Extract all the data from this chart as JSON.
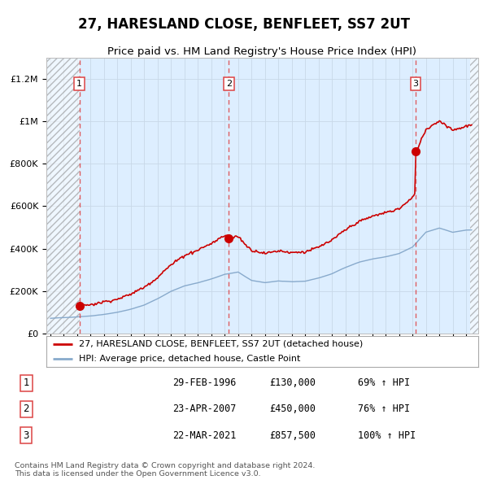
{
  "title": "27, HARESLAND CLOSE, BENFLEET, SS7 2UT",
  "subtitle": "Price paid vs. HM Land Registry's House Price Index (HPI)",
  "ylim": [
    0,
    1300000
  ],
  "yticks": [
    0,
    200000,
    400000,
    600000,
    800000,
    1000000,
    1200000
  ],
  "ytick_labels": [
    "£0",
    "£200K",
    "£400K",
    "£600K",
    "£800K",
    "£1M",
    "£1.2M"
  ],
  "xlim_start": 1993.7,
  "xlim_end": 2025.9,
  "background_color": "#ffffff",
  "plot_bg_color": "#ddeeff",
  "grid_color": "#c8d8e8",
  "sale_dates": [
    1996.16,
    2007.31,
    2021.22
  ],
  "sale_prices": [
    130000,
    450000,
    857500
  ],
  "sale_labels": [
    "1",
    "2",
    "3"
  ],
  "red_line_color": "#cc0000",
  "blue_line_color": "#88aacc",
  "dashed_line_color": "#dd4444",
  "legend_label_red": "27, HARESLAND CLOSE, BENFLEET, SS7 2UT (detached house)",
  "legend_label_blue": "HPI: Average price, detached house, Castle Point",
  "table_data": [
    [
      "1",
      "29-FEB-1996",
      "£130,000",
      "69% ↑ HPI"
    ],
    [
      "2",
      "23-APR-2007",
      "£450,000",
      "76% ↑ HPI"
    ],
    [
      "3",
      "22-MAR-2021",
      "£857,500",
      "100% ↑ HPI"
    ]
  ],
  "footnote": "Contains HM Land Registry data © Crown copyright and database right 2024.\nThis data is licensed under the Open Government Licence v3.0.",
  "title_fontsize": 12,
  "subtitle_fontsize": 9.5,
  "tick_fontsize": 8
}
